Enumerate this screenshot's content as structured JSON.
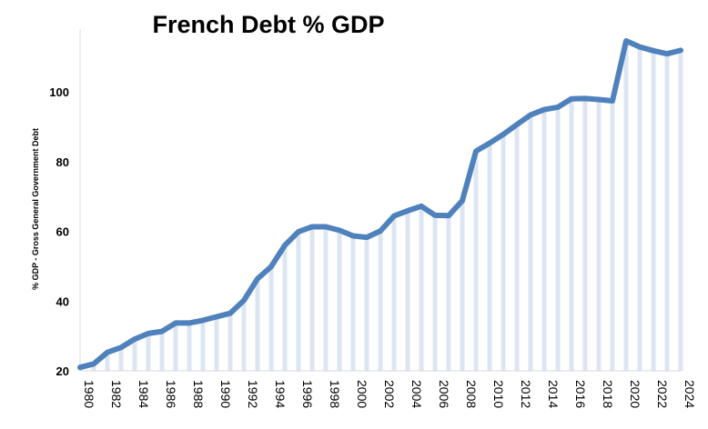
{
  "chart_data": {
    "type": "line",
    "title": "French Debt % GDP",
    "ylabel": "% GDP - Gross General Government Debt",
    "xlabel": "",
    "ylim": [
      20,
      118
    ],
    "yticks": [
      20,
      40,
      60,
      80,
      100
    ],
    "x": [
      1980,
      1981,
      1982,
      1983,
      1984,
      1985,
      1986,
      1987,
      1988,
      1989,
      1990,
      1991,
      1992,
      1993,
      1994,
      1995,
      1996,
      1997,
      1998,
      1999,
      2000,
      2001,
      2002,
      2003,
      2004,
      2005,
      2006,
      2007,
      2008,
      2009,
      2010,
      2011,
      2012,
      2013,
      2014,
      2015,
      2016,
      2017,
      2018,
      2019,
      2020,
      2021,
      2022,
      2023,
      2024
    ],
    "xtick_labels": [
      "1980",
      "1982",
      "1984",
      "1986",
      "1988",
      "1990",
      "1992",
      "1994",
      "1996",
      "1998",
      "2000",
      "2002",
      "2004",
      "2006",
      "2008",
      "2010",
      "2012",
      "2014",
      "2016",
      "2018",
      "2020",
      "2022",
      "2024"
    ],
    "series": [
      {
        "values": [
          21,
          22,
          25.3,
          26.7,
          29.1,
          30.7,
          31.3,
          33.7,
          33.7,
          34.5,
          35.5,
          36.5,
          40.2,
          46.4,
          49.9,
          56.0,
          59.9,
          61.3,
          61.3,
          60.3,
          58.7,
          58.3,
          60.1,
          64.4,
          65.9,
          67.2,
          64.6,
          64.5,
          68.8,
          83.0,
          85.3,
          87.8,
          90.6,
          93.4,
          94.9,
          95.6,
          98.0,
          98.1,
          97.8,
          97.4,
          114.6,
          112.9,
          111.8,
          110.9,
          111.9
        ],
        "color": "#4f81bd"
      }
    ],
    "grid": false,
    "bar_fill_color": "#dce6f2",
    "line_color": "#4f81bd"
  }
}
